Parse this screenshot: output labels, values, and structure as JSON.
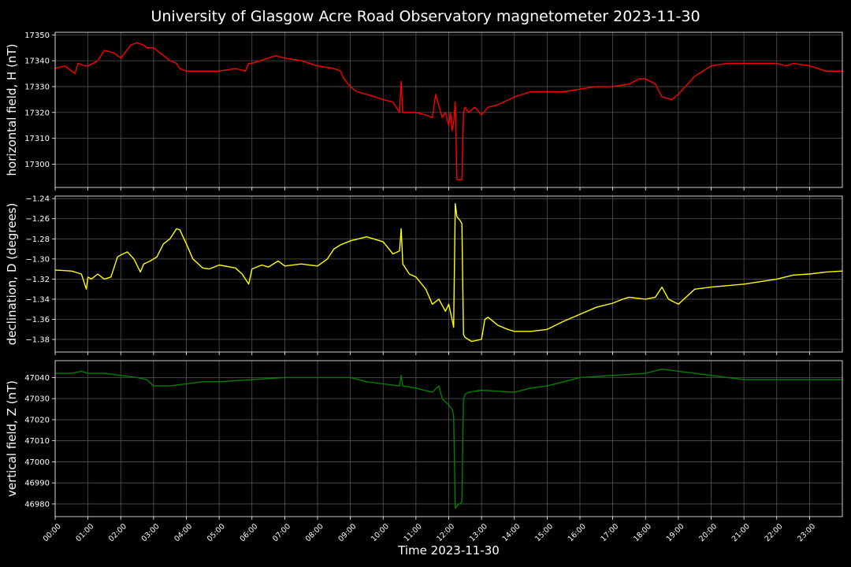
{
  "chart_data": [
    {
      "type": "line",
      "title": "University of Glasgow Acre Road Observatory magnetometer 2023-11-30",
      "xlabel": "Time 2023-11-30",
      "ylabel": "horizontal field, H (nT)",
      "color": "#ff0000",
      "ylim": [
        17291,
        17351
      ],
      "yticks": [
        17300,
        17310,
        17320,
        17330,
        17340,
        17350
      ],
      "ytick_labels": [
        "17300",
        "17310",
        "17320",
        "17330",
        "17340",
        "17350"
      ],
      "xlim": [
        0,
        24
      ],
      "xtick_labels": [
        "00:00",
        "01:00",
        "02:00",
        "03:00",
        "04:00",
        "05:00",
        "06:00",
        "07:00",
        "08:00",
        "09:00",
        "10:00",
        "11:00",
        "12:00",
        "13:00",
        "14:00",
        "15:00",
        "16:00",
        "17:00",
        "18:00",
        "19:00",
        "20:00",
        "21:00",
        "22:00",
        "23:00"
      ],
      "grid": true,
      "x_hours": [
        0,
        0.3,
        0.5,
        0.6,
        0.7,
        0.9,
        1.0,
        1.3,
        1.5,
        1.8,
        2.0,
        2.3,
        2.5,
        2.7,
        2.8,
        2.9,
        3.0,
        3.2,
        3.5,
        3.7,
        3.8,
        4.0,
        4.1,
        4.5,
        5.0,
        5.5,
        5.8,
        5.9,
        6.0,
        6.5,
        6.7,
        7.0,
        7.5,
        8.0,
        8.5,
        8.7,
        8.8,
        9.0,
        9.2,
        9.5,
        10.0,
        10.3,
        10.5,
        10.55,
        10.6,
        10.7,
        11.0,
        11.3,
        11.5,
        11.6,
        11.8,
        11.9,
        12.0,
        12.05,
        12.1,
        12.15,
        12.2,
        12.25,
        12.3,
        12.35,
        12.4,
        12.45,
        12.5,
        12.6,
        12.8,
        13.0,
        13.2,
        13.5,
        14.0,
        14.5,
        15.0,
        15.5,
        16.0,
        16.5,
        17.0,
        17.5,
        17.8,
        18.0,
        18.3,
        18.5,
        18.8,
        19.0,
        19.5,
        20.0,
        20.5,
        21.0,
        21.5,
        22.0,
        22.3,
        22.5,
        23.0,
        23.5,
        24.0
      ],
      "values": [
        17337,
        17338,
        17336,
        17335,
        17339,
        17338,
        17338,
        17340,
        17344,
        17343,
        17341,
        17346,
        17347,
        17346,
        17345,
        17345,
        17345,
        17343,
        17340,
        17339,
        17337,
        17336,
        17336,
        17336,
        17336,
        17337,
        17336,
        17339,
        17339,
        17341,
        17342,
        17341,
        17340,
        17338,
        17337,
        17336,
        17333,
        17330,
        17328,
        17327,
        17325,
        17324,
        17320,
        17332,
        17320,
        17320,
        17320,
        17319,
        17318,
        17327,
        17318,
        17320,
        17315,
        17320,
        17313,
        17316,
        17324,
        17294,
        17294,
        17294,
        17294,
        17320,
        17322,
        17320,
        17322,
        17319,
        17322,
        17323,
        17326,
        17328,
        17328,
        17328,
        17329,
        17330,
        17330,
        17331,
        17333,
        17333,
        17331,
        17326,
        17325,
        17327,
        17334,
        17338,
        17339,
        17339,
        17339,
        17339,
        17338,
        17339,
        17338,
        17336,
        17336
      ]
    },
    {
      "type": "line",
      "ylabel": "declination, D (degrees)",
      "color": "#ffff00",
      "ylim": [
        -1.3925,
        -1.2375
      ],
      "yticks": [
        -1.38,
        -1.36,
        -1.34,
        -1.32,
        -1.3,
        -1.28,
        -1.26,
        -1.24
      ],
      "ytick_labels": [
        "−1.38",
        "−1.36",
        "−1.34",
        "−1.32",
        "−1.30",
        "−1.28",
        "−1.26",
        "−1.24"
      ],
      "xlim": [
        0,
        24
      ],
      "grid": true,
      "x_hours": [
        0,
        0.5,
        0.8,
        0.9,
        0.95,
        1.0,
        1.1,
        1.3,
        1.5,
        1.7,
        1.9,
        2.0,
        2.2,
        2.4,
        2.6,
        2.7,
        2.9,
        3.1,
        3.3,
        3.5,
        3.7,
        3.8,
        4.0,
        4.2,
        4.5,
        4.7,
        5.0,
        5.5,
        5.7,
        5.9,
        6.0,
        6.3,
        6.5,
        6.8,
        7.0,
        7.5,
        8.0,
        8.3,
        8.5,
        8.7,
        9.0,
        9.5,
        10.0,
        10.3,
        10.5,
        10.55,
        10.6,
        10.8,
        11.0,
        11.3,
        11.5,
        11.7,
        11.9,
        12.0,
        12.1,
        12.15,
        12.2,
        12.25,
        12.3,
        12.35,
        12.4,
        12.45,
        12.5,
        12.7,
        13.0,
        13.1,
        13.2,
        13.5,
        13.8,
        14.0,
        14.5,
        15.0,
        15.5,
        16.0,
        16.5,
        17.0,
        17.3,
        17.5,
        18.0,
        18.3,
        18.5,
        18.7,
        19.0,
        19.5,
        20.0,
        21.0,
        22.0,
        22.5,
        23.0,
        23.5,
        24.0
      ],
      "values": [
        -1.311,
        -1.312,
        -1.315,
        -1.325,
        -1.33,
        -1.318,
        -1.32,
        -1.315,
        -1.32,
        -1.318,
        -1.298,
        -1.296,
        -1.293,
        -1.3,
        -1.313,
        -1.305,
        -1.302,
        -1.298,
        -1.285,
        -1.28,
        -1.27,
        -1.271,
        -1.285,
        -1.3,
        -1.309,
        -1.31,
        -1.306,
        -1.309,
        -1.315,
        -1.325,
        -1.31,
        -1.306,
        -1.308,
        -1.302,
        -1.307,
        -1.305,
        -1.307,
        -1.3,
        -1.29,
        -1.286,
        -1.282,
        -1.278,
        -1.283,
        -1.295,
        -1.292,
        -1.27,
        -1.305,
        -1.315,
        -1.318,
        -1.33,
        -1.345,
        -1.34,
        -1.352,
        -1.345,
        -1.36,
        -1.368,
        -1.245,
        -1.258,
        -1.26,
        -1.262,
        -1.265,
        -1.375,
        -1.378,
        -1.382,
        -1.38,
        -1.36,
        -1.358,
        -1.366,
        -1.37,
        -1.372,
        -1.372,
        -1.37,
        -1.362,
        -1.355,
        -1.348,
        -1.344,
        -1.34,
        -1.338,
        -1.34,
        -1.338,
        -1.328,
        -1.34,
        -1.345,
        -1.33,
        -1.328,
        -1.325,
        -1.32,
        -1.316,
        -1.315,
        -1.313,
        -1.312
      ]
    },
    {
      "type": "line",
      "ylabel": "vertical field, Z (nT)",
      "color": "#008000",
      "xlabel": "Time 2023-11-30",
      "ylim": [
        46974,
        47048
      ],
      "yticks": [
        46980,
        46990,
        47000,
        47010,
        47020,
        47030,
        47040
      ],
      "ytick_labels": [
        "46980",
        "46990",
        "47000",
        "47010",
        "47020",
        "47030",
        "47040"
      ],
      "xlim": [
        0,
        24
      ],
      "grid": true,
      "x_hours": [
        0,
        0.5,
        0.8,
        1.0,
        1.5,
        2.0,
        2.5,
        2.8,
        3.0,
        3.5,
        4.0,
        4.5,
        5.0,
        6.0,
        7.0,
        8.0,
        9.0,
        9.5,
        10.0,
        10.5,
        10.55,
        10.6,
        11.0,
        11.5,
        11.7,
        11.8,
        12.0,
        12.1,
        12.15,
        12.2,
        12.25,
        12.3,
        12.35,
        12.4,
        12.45,
        12.5,
        12.6,
        13.0,
        14.0,
        14.5,
        15.0,
        15.5,
        16.0,
        17.0,
        18.0,
        18.5,
        19.0,
        19.5,
        20.0,
        21.0,
        22.0,
        23.0,
        24.0
      ],
      "values": [
        47042,
        47042,
        47043,
        47042,
        47042,
        47041,
        47040,
        47039,
        47036,
        47036,
        47037,
        47038,
        47038,
        47039,
        47040,
        47040,
        47040,
        47038,
        47037,
        47036,
        47041,
        47036,
        47035,
        47033,
        47036,
        47030,
        47027,
        47025,
        47022,
        46978,
        46979,
        46980,
        46980,
        46981,
        47030,
        47032,
        47033,
        47034,
        47033,
        47035,
        47036,
        47038,
        47040,
        47041,
        47042,
        47044,
        47043,
        47042,
        47041,
        47039,
        47039,
        47039,
        47039
      ]
    }
  ]
}
